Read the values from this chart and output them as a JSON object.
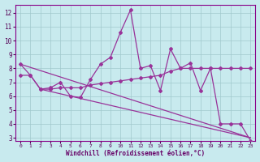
{
  "title": "",
  "xlabel": "Windchill (Refroidissement éolien,°C)",
  "background_color": "#c8eaee",
  "grid_color": "#a0c8cc",
  "line_color": "#993399",
  "xlim": [
    -0.5,
    23.5
  ],
  "ylim": [
    2.8,
    12.6
  ],
  "xticks": [
    0,
    1,
    2,
    3,
    4,
    5,
    6,
    7,
    8,
    9,
    10,
    11,
    12,
    13,
    14,
    15,
    16,
    17,
    18,
    19,
    20,
    21,
    22,
    23
  ],
  "yticks": [
    3,
    4,
    5,
    6,
    7,
    8,
    9,
    10,
    11,
    12
  ],
  "x": [
    0,
    1,
    2,
    3,
    4,
    5,
    6,
    7,
    8,
    9,
    10,
    11,
    12,
    13,
    14,
    15,
    16,
    17,
    18,
    19,
    20,
    21,
    22,
    23
  ],
  "line_main": [
    8.3,
    7.5,
    6.5,
    6.6,
    7.0,
    6.0,
    5.9,
    7.2,
    8.3,
    8.8,
    10.6,
    12.2,
    8.0,
    8.2,
    6.4,
    9.4,
    8.0,
    8.4,
    6.4,
    8.0,
    4.0,
    4.0,
    4.0,
    2.8
  ],
  "line_slowly_rising": [
    7.5,
    7.5,
    6.5,
    6.5,
    6.6,
    6.6,
    6.6,
    6.8,
    6.9,
    7.0,
    7.1,
    7.2,
    7.3,
    7.4,
    7.5,
    7.8,
    8.0,
    8.0,
    8.0,
    8.0,
    8.0,
    8.0,
    8.0,
    8.0
  ],
  "trend1_x": [
    0,
    23
  ],
  "trend1_y": [
    8.3,
    3.0
  ],
  "trend2_x": [
    2,
    23
  ],
  "trend2_y": [
    6.5,
    3.0
  ]
}
